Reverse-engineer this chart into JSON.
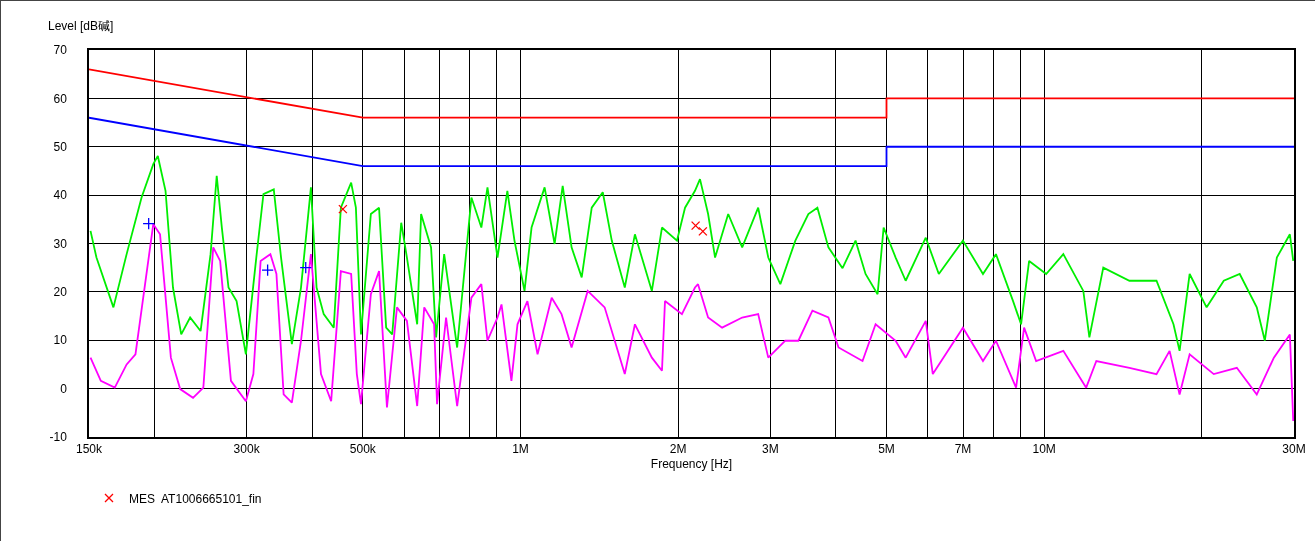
{
  "chart_data": {
    "type": "line",
    "xlabel": "Frequency [Hz]",
    "ylabel": "Level [dB碱]",
    "log": "x",
    "grid": true,
    "legend": "bottom",
    "line_style": "solid",
    "xlim": [
      150000,
      30000000
    ],
    "xticks": [
      {
        "value": 150000,
        "label": "150k"
      },
      {
        "value": 200000,
        "label": null
      },
      {
        "value": 300000,
        "label": "300k"
      },
      {
        "value": 400000,
        "label": null
      },
      {
        "value": 500000,
        "label": "500k"
      },
      {
        "value": 600000,
        "label": null
      },
      {
        "value": 700000,
        "label": null
      },
      {
        "value": 800000,
        "label": null
      },
      {
        "value": 900000,
        "label": null
      },
      {
        "value": 1000000,
        "label": "1M"
      },
      {
        "value": 2000000,
        "label": "2M"
      },
      {
        "value": 3000000,
        "label": "3M"
      },
      {
        "value": 4000000,
        "label": null
      },
      {
        "value": 5000000,
        "label": "5M"
      },
      {
        "value": 6000000,
        "label": null
      },
      {
        "value": 7000000,
        "label": "7M"
      },
      {
        "value": 8000000,
        "label": null
      },
      {
        "value": 9000000,
        "label": null
      },
      {
        "value": 10000000,
        "label": "10M"
      },
      {
        "value": 20000000,
        "label": null
      },
      {
        "value": 30000000,
        "label": "30M"
      }
    ],
    "ylim": [
      -10,
      70
    ],
    "yticks": [
      -10,
      0,
      10,
      20,
      30,
      40,
      50,
      60,
      70
    ],
    "series": [
      {
        "color": "#ff0000",
        "x": [
          150000,
          500000,
          5000000,
          5000000,
          30000000
        ],
        "values": [
          66,
          56,
          56,
          60,
          60
        ]
      },
      {
        "color": "#0000ff",
        "x": [
          150000,
          500000,
          5000000,
          5000000,
          30000000
        ],
        "values": [
          56,
          46,
          46,
          50,
          50
        ]
      },
      {
        "color": "#00ee00",
        "x": [
          151000,
          155000,
          167000,
          177000,
          189000,
          199000,
          203000,
          210000,
          217000,
          225000,
          234000,
          245000,
          256000,
          263000,
          269000,
          277000,
          287000,
          299000,
          313000,
          323000,
          338000,
          349000,
          366000,
          381000,
          398000,
          408000,
          421000,
          440000,
          454000,
          475000,
          485000,
          496000,
          518000,
          537000,
          554000,
          569000,
          592000,
          607000,
          635000,
          646000,
          675000,
          690000,
          715000,
          757000,
          806000,
          842000,
          865000,
          904000,
          944000,
          974000,
          1018000,
          1050000,
          1112000,
          1162000,
          1204000,
          1252000,
          1309000,
          1368000,
          1436000,
          1494000,
          1582000,
          1654000,
          1782000,
          1863000,
          1990000,
          2062000,
          2154000,
          2202000,
          2282000,
          2353000,
          2493000,
          2651000,
          2844000,
          2973000,
          3135000,
          3349000,
          3546000,
          3690000,
          3873000,
          4121000,
          4364000,
          4560000,
          4808000,
          4937000,
          5205000,
          5440000,
          5942000,
          6293000,
          6997000,
          7642000,
          8091000,
          8723000,
          9035000,
          9361000,
          10090000,
          10880000,
          11880000,
          12200000,
          12970000,
          14550000,
          16390000,
          17660000,
          18140000,
          18960000,
          20430000,
          22030000,
          23630000,
          25470000,
          26390000,
          27820000,
          29460000,
          29900000
        ],
        "values": [
          32.6,
          27.1,
          16.8,
          27.8,
          39.5,
          46.4,
          48.1,
          40.9,
          20.9,
          11.2,
          14.7,
          11.9,
          27.8,
          44.0,
          33.3,
          20.9,
          18.1,
          7.1,
          27.1,
          40.2,
          41.2,
          27.1,
          9.2,
          20.9,
          41.6,
          20.9,
          15.4,
          12.6,
          37.4,
          42.6,
          37.4,
          11.2,
          36.1,
          37.4,
          12.6,
          11.2,
          34.3,
          27.1,
          13.3,
          36.1,
          29.2,
          10.6,
          27.8,
          8.5,
          39.5,
          33.3,
          41.6,
          27.1,
          40.9,
          30.6,
          20.2,
          33.3,
          41.6,
          29.9,
          41.9,
          29.2,
          23.0,
          37.4,
          40.6,
          30.6,
          20.9,
          31.9,
          20.2,
          33.3,
          30.6,
          37.4,
          40.9,
          43.3,
          36.1,
          27.1,
          36.1,
          29.2,
          37.4,
          27.1,
          21.6,
          30.6,
          36.1,
          37.4,
          29.2,
          24.9,
          30.6,
          23.7,
          19.5,
          33.3,
          27.1,
          22.3,
          31.2,
          23.7,
          30.6,
          23.7,
          27.8,
          18.1,
          13.3,
          26.4,
          23.7,
          27.8,
          20.2,
          10.6,
          25.0,
          22.3,
          22.3,
          13.3,
          7.8,
          23.7,
          16.8,
          22.3,
          23.7,
          16.8,
          9.9,
          27.1,
          31.9,
          26.4
        ]
      },
      {
        "color": "#ff00ff",
        "x": [
          151000,
          158000,
          168000,
          177000,
          184000,
          199000,
          205000,
          215000,
          224000,
          237000,
          248000,
          259000,
          267000,
          280000,
          299000,
          309000,
          319000,
          333000,
          342000,
          353000,
          366000,
          381000,
          398000,
          416000,
          435000,
          454000,
          475000,
          487000,
          496000,
          518000,
          537000,
          556000,
          581000,
          607000,
          635000,
          655000,
          684000,
          693000,
          721000,
          757000,
          806000,
          842000,
          865000,
          904000,
          920000,
          961000,
          987000,
          1031000,
          1078000,
          1147000,
          1198000,
          1252000,
          1344000,
          1448000,
          1582000,
          1654000,
          1782000,
          1863000,
          1888000,
          2034000,
          2154000,
          2183000,
          2282000,
          2427000,
          2651000,
          2844000,
          2973000,
          3204000,
          3394000,
          3610000,
          3873000,
          4049000,
          4500000,
          4766000,
          5205000,
          5440000,
          5942000,
          6129000,
          6997000,
          7642000,
          8091000,
          8839000,
          9157000,
          9654000,
          10880000,
          12030000,
          12580000,
          14550000,
          16390000,
          17360000,
          18140000,
          18960000,
          21080000,
          23330000,
          25470000,
          27460000,
          29460000,
          29900000
        ],
        "values": [
          6.4,
          1.6,
          0.2,
          5.0,
          7.1,
          34.0,
          31.9,
          6.4,
          -0.1,
          -1.9,
          0.2,
          29.2,
          26.4,
          1.6,
          -2.6,
          3.0,
          26.4,
          27.8,
          23.7,
          -1.2,
          -2.9,
          9.9,
          27.8,
          3.0,
          -2.6,
          24.3,
          23.7,
          3.0,
          -3.2,
          19.5,
          24.3,
          -3.9,
          16.8,
          14.0,
          -3.6,
          16.8,
          13.3,
          -3.2,
          14.7,
          -3.6,
          18.8,
          21.6,
          9.9,
          14.7,
          17.4,
          1.6,
          13.3,
          18.1,
          7.1,
          18.8,
          15.4,
          8.5,
          20.2,
          16.8,
          3.0,
          13.3,
          6.4,
          3.7,
          18.1,
          15.4,
          20.9,
          21.6,
          14.7,
          12.6,
          14.7,
          15.4,
          6.4,
          9.9,
          9.9,
          16.1,
          14.7,
          8.5,
          5.7,
          13.3,
          9.9,
          6.4,
          14.0,
          3.0,
          12.6,
          5.7,
          9.9,
          0.2,
          12.6,
          5.7,
          7.8,
          0.2,
          5.7,
          4.3,
          3.0,
          7.8,
          -1.2,
          7.1,
          3.0,
          4.3,
          -1.2,
          6.4,
          11.2,
          -6.7
        ]
      },
      {
        "type": "scatter",
        "color": "#0000ff",
        "marker": "cross",
        "x": [
          195000,
          329000,
          389000
        ],
        "values": [
          34.1,
          24.5,
          25.0
        ]
      },
      {
        "type": "scatter",
        "color": "#ff0000",
        "marker": "x",
        "name": "MES  AT1006665101_fin",
        "x": [
          458000,
          2160000,
          2230000
        ],
        "values": [
          37.1,
          33.7,
          32.5
        ]
      }
    ]
  }
}
